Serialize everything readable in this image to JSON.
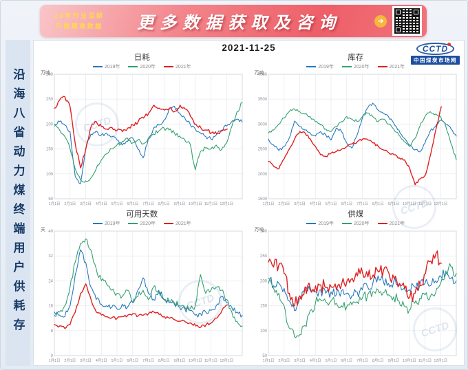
{
  "banner": {
    "slogan_line1": "20年行业深耕",
    "slogan_line2": "只做精准数据",
    "title": "更多数据获取及咨询",
    "arrow_glyph": "➜"
  },
  "sidebar": {
    "vertical_title": "沿海八省动力煤终端用户供耗存"
  },
  "header": {
    "date": "2021-11-25",
    "logo": {
      "text": "CCTD",
      "subtext": "中国煤炭市场网"
    }
  },
  "watermark": {
    "text": "CCTD"
  },
  "chart_data": [
    {
      "type": "line",
      "title": "日耗",
      "unit": "万吨",
      "ylim": [
        50,
        300
      ],
      "yticks": [
        50,
        100,
        150,
        200,
        250,
        300
      ],
      "xlabels": [
        "1月1日",
        "2月1日",
        "3月1日",
        "4月1日",
        "5月1日",
        "6月1日",
        "7月1日",
        "8月1日",
        "9月1日",
        "10月1日",
        "11月1日",
        "12月1日"
      ],
      "legend_position": "top",
      "grid": true,
      "series": [
        {
          "name": "2019年",
          "color": "#2779bd",
          "noise": 4,
          "span": 1,
          "values": [
            200,
            205,
            198,
            185,
            95,
            80,
            150,
            180,
            186,
            178,
            182,
            174,
            168,
            158,
            165,
            172,
            150,
            132,
            170,
            192,
            198,
            208,
            230,
            236,
            222,
            212,
            200,
            190,
            182,
            175,
            170,
            178,
            188,
            196,
            205,
            210,
            204
          ]
        },
        {
          "name": "2020年",
          "color": "#35a06f",
          "noise": 4,
          "span": 1,
          "values": [
            196,
            188,
            175,
            150,
            110,
            88,
            86,
            92,
            110,
            128,
            140,
            150,
            158,
            165,
            172,
            162,
            168,
            160,
            172,
            180,
            186,
            192,
            188,
            182,
            176,
            168,
            160,
            108,
            145,
            152,
            150,
            158,
            148,
            162,
            195,
            225,
            243
          ]
        },
        {
          "name": "2021年",
          "color": "#e02020",
          "noise": 4,
          "span": 0.92,
          "values": [
            232,
            248,
            255,
            235,
            160,
            112,
            150,
            195,
            205,
            195,
            190,
            193,
            188,
            185,
            192,
            198,
            205,
            212,
            222,
            238,
            232,
            228,
            232,
            226,
            238,
            230,
            215,
            200,
            192,
            188,
            182,
            180,
            186,
            190
          ]
        }
      ]
    },
    {
      "type": "line",
      "title": "库存",
      "unit": "万吨",
      "ylim": [
        1500,
        4000
      ],
      "yticks": [
        1500,
        2000,
        2500,
        3000,
        3500,
        4000
      ],
      "xlabels": [
        "1月1日",
        "2月1日",
        "3月1日",
        "4月1日",
        "5月1日",
        "6月1日",
        "7月1日",
        "8月1日",
        "9月1日",
        "10月1日",
        "11月1日",
        "12月1日"
      ],
      "legend_position": "top",
      "grid": true,
      "series": [
        {
          "name": "2019年",
          "color": "#2779bd",
          "noise": 30,
          "span": 1,
          "values": [
            2700,
            2580,
            2470,
            2550,
            2720,
            3060,
            2950,
            2880,
            2820,
            2760,
            2850,
            2780,
            2680,
            2920,
            2850,
            2620,
            2520,
            2780,
            3120,
            3320,
            3420,
            3280,
            3220,
            3150,
            3020,
            2880,
            2720,
            2580,
            2480,
            2440,
            2620,
            2860,
            2950,
            3080,
            3000,
            2900,
            2760
          ]
        },
        {
          "name": "2020年",
          "color": "#35a06f",
          "noise": 30,
          "span": 1,
          "values": [
            2820,
            2880,
            3000,
            3120,
            3250,
            3300,
            3250,
            3200,
            3150,
            3050,
            2980,
            2900,
            2850,
            2950,
            3050,
            3150,
            3100,
            3050,
            3150,
            3220,
            3150,
            3050,
            3100,
            3000,
            2900,
            2780,
            2650,
            2550,
            2700,
            2950,
            3150,
            3250,
            3200,
            3150,
            2950,
            2600,
            2280
          ]
        },
        {
          "name": "2021年",
          "color": "#e02020",
          "noise": 25,
          "span": 0.92,
          "values": [
            2250,
            2150,
            2100,
            2300,
            2500,
            2700,
            2850,
            2820,
            2700,
            2550,
            2380,
            2350,
            2420,
            2450,
            2500,
            2550,
            2600,
            2650,
            2700,
            2680,
            2620,
            2550,
            2480,
            2420,
            2380,
            2320,
            2280,
            2100,
            1780,
            1900,
            1980,
            2400,
            2900,
            3350
          ]
        }
      ]
    },
    {
      "type": "line",
      "title": "可用天数",
      "unit": "天",
      "ylim": [
        0,
        40
      ],
      "yticks": [
        0,
        8,
        16,
        24,
        32,
        40
      ],
      "xlabels": [
        "1月1日",
        "2月1日",
        "3月1日",
        "4月1日",
        "5月1日",
        "6月1日",
        "7月1日",
        "8月1日",
        "9月1日",
        "10月1日",
        "11月1日",
        "12月1日"
      ],
      "legend_position": "top",
      "grid": true,
      "series": [
        {
          "name": "2019年",
          "color": "#2779bd",
          "noise": 1,
          "span": 1,
          "values": [
            14,
            13,
            12.5,
            16,
            26,
            34,
            30,
            22,
            18,
            16.5,
            16,
            15.5,
            15,
            16.5,
            15.5,
            17,
            21,
            25,
            20,
            18,
            21,
            18,
            17,
            16.5,
            15.5,
            15,
            14.5,
            13,
            13.5,
            14,
            14.5,
            16,
            19,
            17,
            15.5,
            14,
            13
          ]
        },
        {
          "name": "2020年",
          "color": "#35a06f",
          "noise": 1,
          "span": 1,
          "values": [
            13,
            14,
            16,
            22,
            30,
            36,
            37.5,
            34,
            28,
            24,
            23,
            21,
            20,
            19,
            21,
            17,
            19,
            21,
            18,
            22,
            20,
            18,
            17.5,
            17,
            16,
            15.5,
            15,
            16,
            26,
            20,
            21,
            22,
            21,
            18,
            14,
            11,
            9.5
          ]
        },
        {
          "name": "2021年",
          "color": "#e02020",
          "noise": 0.5,
          "span": 0.92,
          "values": [
            10,
            9.5,
            8.7,
            10,
            14,
            20,
            23,
            18,
            14,
            13,
            12.5,
            12.2,
            12,
            12.5,
            13,
            13.5,
            12.8,
            13,
            13.5,
            14,
            13.2,
            12.5,
            12,
            11.5,
            11,
            10.8,
            10.5,
            9.5,
            9.2,
            10,
            10.5,
            12,
            14.5,
            16.3
          ]
        }
      ]
    },
    {
      "type": "line",
      "title": "供煤",
      "unit": "万吨",
      "ylim": [
        50,
        300
      ],
      "yticks": [
        50,
        100,
        150,
        200,
        250,
        300
      ],
      "xlabels": [
        "1月1日",
        "2月1日",
        "3月1日",
        "4月1日",
        "5月1日",
        "6月1日",
        "7月1日",
        "8月1日",
        "9月1日",
        "10月1日",
        "11月1日",
        "12月1日"
      ],
      "legend_position": "top",
      "grid": true,
      "series": [
        {
          "name": "2019年",
          "color": "#2779bd",
          "noise": 11,
          "span": 1,
          "values": [
            205,
            190,
            195,
            185,
            160,
            140,
            165,
            185,
            180,
            178,
            182,
            175,
            178,
            172,
            180,
            175,
            170,
            178,
            182,
            188,
            195,
            210,
            200,
            195,
            198,
            190,
            185,
            182,
            188,
            192,
            195,
            190,
            200,
            210,
            215,
            205,
            200
          ]
        },
        {
          "name": "2020年",
          "color": "#35a06f",
          "noise": 11,
          "span": 1,
          "values": [
            195,
            185,
            175,
            150,
            105,
            88,
            92,
            110,
            140,
            155,
            162,
            158,
            160,
            155,
            150,
            148,
            152,
            158,
            165,
            172,
            178,
            182,
            176,
            172,
            168,
            160,
            150,
            142,
            155,
            165,
            172,
            168,
            175,
            195,
            220,
            228,
            215
          ]
        },
        {
          "name": "2021年",
          "color": "#e02020",
          "noise": 14,
          "span": 0.92,
          "values": [
            238,
            228,
            232,
            215,
            175,
            150,
            170,
            188,
            185,
            190,
            192,
            186,
            188,
            182,
            195,
            200,
            205,
            210,
            215,
            208,
            212,
            218,
            222,
            215,
            205,
            195,
            185,
            168,
            175,
            190,
            215,
            240,
            255,
            235
          ]
        }
      ]
    }
  ]
}
